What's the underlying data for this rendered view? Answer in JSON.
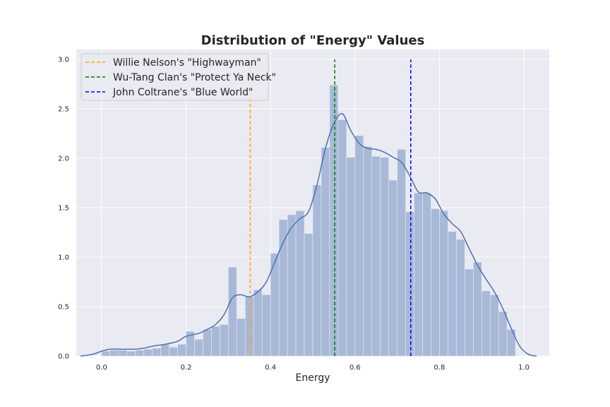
{
  "chart_data": {
    "type": "histogram",
    "title": "Distribution of \"Energy\" Values",
    "xlabel": "Energy",
    "ylabel": "",
    "xlim": [
      -0.06,
      1.06
    ],
    "ylim": [
      0,
      3.1
    ],
    "x_ticks": [
      "0.0",
      "0.2",
      "0.4",
      "0.6",
      "0.8",
      "1.0"
    ],
    "y_ticks": [
      "0.0",
      "0.5",
      "1.0",
      "1.5",
      "2.0",
      "2.5",
      "3.0"
    ],
    "grid": true,
    "legend_position": "top-left",
    "bins": {
      "start": 0.0,
      "width": 0.02,
      "densities": [
        0.05,
        0.06,
        0.06,
        0.05,
        0.06,
        0.07,
        0.08,
        0.12,
        0.09,
        0.12,
        0.25,
        0.17,
        0.27,
        0.3,
        0.32,
        0.9,
        0.38,
        0.6,
        0.67,
        0.62,
        1.04,
        1.38,
        1.43,
        1.47,
        1.24,
        1.73,
        2.11,
        2.74,
        2.39,
        2.01,
        2.23,
        2.12,
        2.02,
        2.01,
        1.78,
        2.09,
        1.46,
        1.65,
        1.65,
        1.49,
        1.47,
        1.26,
        1.18,
        0.88,
        0.95,
        0.66,
        0.62,
        0.45,
        0.27
      ],
      "color": "#a8b9d8"
    },
    "kde": {
      "color": "#4c72b0",
      "x": [
        -0.05,
        -0.02,
        0.0,
        0.02,
        0.05,
        0.08,
        0.1,
        0.12,
        0.15,
        0.18,
        0.2,
        0.23,
        0.25,
        0.27,
        0.29,
        0.31,
        0.33,
        0.35,
        0.37,
        0.39,
        0.41,
        0.43,
        0.45,
        0.47,
        0.49,
        0.51,
        0.53,
        0.55,
        0.57,
        0.59,
        0.61,
        0.63,
        0.65,
        0.67,
        0.69,
        0.71,
        0.73,
        0.75,
        0.77,
        0.79,
        0.81,
        0.83,
        0.85,
        0.87,
        0.89,
        0.91,
        0.93,
        0.95,
        0.97,
        0.99,
        1.01,
        1.03
      ],
      "y": [
        0.0,
        0.02,
        0.05,
        0.07,
        0.07,
        0.07,
        0.08,
        0.1,
        0.12,
        0.15,
        0.2,
        0.23,
        0.27,
        0.32,
        0.42,
        0.59,
        0.62,
        0.6,
        0.65,
        0.75,
        0.95,
        1.15,
        1.3,
        1.39,
        1.46,
        1.73,
        2.1,
        2.35,
        2.45,
        2.28,
        2.15,
        2.1,
        2.09,
        2.06,
        2.01,
        1.96,
        1.82,
        1.66,
        1.65,
        1.59,
        1.44,
        1.34,
        1.26,
        1.09,
        0.92,
        0.78,
        0.65,
        0.48,
        0.28,
        0.1,
        0.02,
        0.0
      ]
    },
    "series": [
      {
        "name": "Willie Nelson's \"Highwayman\"",
        "x": 0.352,
        "color": "#ffa500"
      },
      {
        "name": "Wu-Tang Clan's \"Protect Ya Neck\"",
        "x": 0.552,
        "color": "#008000"
      },
      {
        "name": "John Coltrane's \"Blue World\"",
        "x": 0.732,
        "color": "#0000ff"
      }
    ]
  }
}
